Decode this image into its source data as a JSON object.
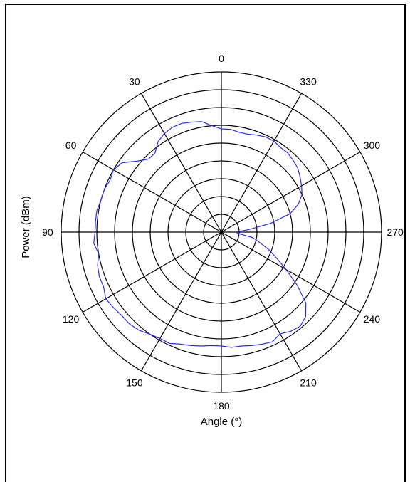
{
  "chart_data": {
    "type": "polar-line",
    "xlabel": "Angle (°)",
    "ylabel": "Power (dBm)",
    "angle_direction": "counterclockwise",
    "zero_position": "top",
    "angle_ticks": [
      "0",
      "30",
      "60",
      "90",
      "120",
      "150",
      "180",
      "210",
      "240",
      "270",
      "300",
      "330"
    ],
    "angle_tick_values": [
      0,
      30,
      60,
      90,
      120,
      150,
      180,
      210,
      240,
      270,
      300,
      330
    ],
    "rlim": [
      0,
      9
    ],
    "r_rings": 9,
    "grid": true,
    "series": [
      {
        "color": "#2a2aee",
        "angle_deg": [
          0,
          5,
          10,
          15,
          20,
          25,
          30,
          35,
          40,
          45,
          50,
          55,
          60,
          65,
          70,
          75,
          80,
          85,
          90,
          95,
          100,
          105,
          110,
          115,
          120,
          125,
          130,
          135,
          140,
          145,
          150,
          155,
          160,
          165,
          170,
          175,
          180,
          185,
          190,
          195,
          200,
          205,
          210,
          215,
          220,
          225,
          230,
          235,
          240,
          245,
          250,
          255,
          260,
          265,
          270,
          275,
          280,
          285,
          290,
          295,
          300,
          305,
          310,
          315,
          320,
          325,
          330,
          335,
          340,
          345,
          350,
          355
        ],
        "r": [
          5.8,
          6.0,
          6.3,
          6.4,
          6.5,
          6.5,
          6.4,
          6.2,
          5.8,
          5.8,
          6.2,
          6.8,
          7.0,
          6.9,
          7.0,
          7.0,
          7.1,
          7.1,
          7.1,
          7.2,
          7.0,
          7.2,
          7.3,
          7.3,
          7.5,
          7.4,
          7.3,
          7.3,
          7.2,
          7.0,
          6.9,
          6.9,
          6.7,
          6.6,
          6.5,
          6.4,
          6.4,
          6.5,
          6.5,
          6.6,
          6.7,
          6.8,
          6.6,
          6.8,
          6.9,
          6.7,
          6.2,
          5.2,
          4.2,
          3.4,
          2.8,
          2.2,
          1.8,
          1.0,
          0.8,
          1.5,
          2.8,
          4.0,
          4.6,
          5.0,
          5.2,
          5.4,
          5.6,
          5.7,
          5.8,
          5.8,
          5.9,
          5.9,
          5.8,
          5.7,
          5.7,
          5.8
        ]
      }
    ]
  }
}
